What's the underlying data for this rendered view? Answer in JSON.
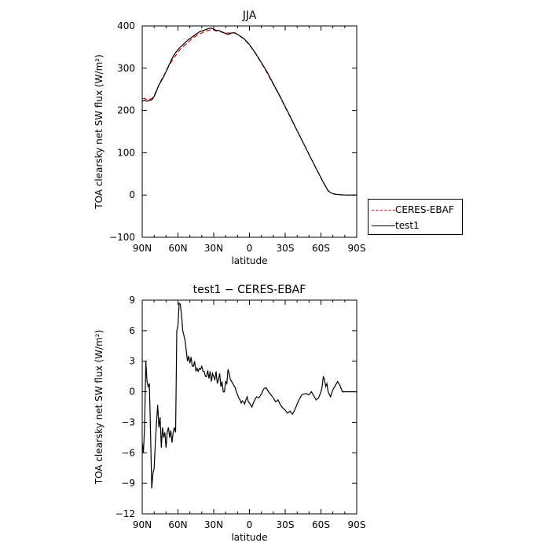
{
  "chart_data": [
    {
      "type": "line",
      "title": "JJA",
      "xlabel": "latitude",
      "ylabel": "TOA clearsky net SW flux (W/m²)",
      "xticks": [
        "90N",
        "60N",
        "30N",
        "0",
        "30S",
        "60S",
        "90S"
      ],
      "yticks": [
        "400",
        "300",
        "200",
        "100",
        "0",
        "−100"
      ],
      "xlim": [
        90,
        -90
      ],
      "ylim": [
        -100,
        400
      ],
      "legend": "right, outside plot",
      "series": [
        {
          "name": "CERES-EBAF",
          "color": "#cc0000",
          "style": "dashed",
          "x": [
            90,
            88,
            86,
            84,
            82,
            80,
            78,
            76,
            74,
            72,
            70,
            68,
            66,
            64,
            62,
            60,
            58,
            56,
            54,
            52,
            50,
            48,
            46,
            44,
            42,
            40,
            38,
            36,
            34,
            32,
            30,
            28,
            26,
            24,
            22,
            20,
            18,
            16,
            14,
            12,
            10,
            5,
            0,
            -5,
            -10,
            -15,
            -20,
            -25,
            -30,
            -35,
            -40,
            -45,
            -50,
            -55,
            -60,
            -62,
            -64,
            -66,
            -68,
            -70,
            -72,
            -75,
            -80,
            -85,
            -90
          ],
          "values": [
            228,
            228,
            226,
            226,
            228,
            235,
            248,
            260,
            272,
            282,
            292,
            303,
            313,
            322,
            330,
            338,
            345,
            350,
            355,
            360,
            365,
            370,
            374,
            378,
            381,
            383,
            386,
            388,
            390,
            391,
            392,
            390,
            388,
            387,
            385,
            384,
            383,
            383,
            384,
            383,
            380,
            370,
            355,
            335,
            312,
            288,
            262,
            236,
            208,
            180,
            152,
            124,
            96,
            68,
            40,
            30,
            20,
            10,
            6,
            3,
            2,
            1,
            0,
            0,
            0
          ]
        },
        {
          "name": "test1",
          "color": "#000000",
          "style": "solid",
          "x": [
            90,
            88,
            86,
            84,
            82,
            80,
            78,
            76,
            74,
            72,
            70,
            68,
            66,
            64,
            62,
            60,
            58,
            56,
            54,
            52,
            50,
            48,
            46,
            44,
            42,
            40,
            38,
            36,
            34,
            32,
            30,
            28,
            26,
            24,
            22,
            20,
            18,
            16,
            14,
            12,
            10,
            5,
            0,
            -5,
            -10,
            -15,
            -20,
            -25,
            -30,
            -35,
            -40,
            -45,
            -50,
            -55,
            -60,
            -62,
            -64,
            -66,
            -68,
            -70,
            -72,
            -75,
            -80,
            -85,
            -90
          ],
          "values": [
            222,
            224,
            222,
            224,
            225,
            233,
            246,
            260,
            270,
            280,
            292,
            305,
            317,
            328,
            337,
            344,
            350,
            355,
            360,
            366,
            370,
            374,
            378,
            382,
            386,
            388,
            390,
            392,
            394,
            395,
            392,
            388,
            390,
            386,
            384,
            382,
            380,
            382,
            384,
            383,
            380,
            371,
            356,
            336,
            313,
            290,
            263,
            237,
            209,
            181,
            152,
            124,
            96,
            68,
            41,
            30,
            20,
            10,
            6,
            3,
            2,
            1,
            0,
            0,
            0
          ]
        }
      ]
    },
    {
      "type": "line",
      "title": "test1 − CERES-EBAF",
      "xlabel": "latitude",
      "ylabel": "TOA clearsky net SW flux (W/m²)",
      "xticks": [
        "90N",
        "60N",
        "30N",
        "0",
        "30S",
        "60S",
        "90S"
      ],
      "yticks": [
        "9",
        "6",
        "3",
        "0",
        "−3",
        "−6",
        "−9",
        "−12"
      ],
      "xlim": [
        90,
        -90
      ],
      "ylim": [
        -12,
        9
      ],
      "series": [
        {
          "color": "#000000",
          "style": "solid",
          "x": [
            90,
            89,
            88,
            87,
            86,
            85,
            84,
            83,
            82,
            81,
            80,
            79,
            78,
            77,
            76,
            75,
            74,
            73,
            72,
            71,
            70,
            69,
            68,
            67,
            66,
            65,
            64,
            63,
            62,
            61,
            60,
            59,
            58,
            57,
            56,
            55,
            54,
            53,
            52,
            51,
            50,
            49,
            48,
            47,
            46,
            45,
            44,
            43,
            42,
            41,
            40,
            39,
            38,
            37,
            36,
            35,
            34,
            33,
            32,
            31,
            30,
            29,
            28,
            27,
            26,
            25,
            24,
            23,
            22,
            21,
            20,
            19,
            18,
            17,
            16,
            15,
            14,
            13,
            12,
            11,
            10,
            9,
            8,
            7,
            6,
            5,
            4,
            3,
            2,
            1,
            0,
            -2,
            -4,
            -6,
            -8,
            -10,
            -12,
            -14,
            -16,
            -18,
            -20,
            -22,
            -24,
            -26,
            -28,
            -30,
            -32,
            -34,
            -36,
            -38,
            -40,
            -42,
            -44,
            -46,
            -48,
            -50,
            -52,
            -54,
            -56,
            -58,
            -60,
            -61,
            -62,
            -63,
            -64,
            -65,
            -66,
            -68,
            -70,
            -72,
            -74,
            -76,
            -78,
            -80,
            -82,
            -84,
            -86,
            -88,
            -90
          ],
          "values": [
            -5,
            -6,
            -3.5,
            3,
            1,
            0.5,
            0.8,
            -4,
            -9.5,
            -8,
            -7.5,
            -5,
            -3,
            -1.3,
            -3.5,
            -2.5,
            -5.5,
            -3.5,
            -4.5,
            -4,
            -5.5,
            -4,
            -3.5,
            -4.5,
            -3.8,
            -5,
            -4,
            -3.5,
            -4,
            6,
            6.5,
            8.7,
            8.6,
            7.5,
            6,
            5.5,
            5,
            4,
            3,
            3.5,
            2.8,
            3.4,
            2.5,
            2.5,
            3,
            2,
            2.3,
            2,
            2.3,
            2.2,
            2.5,
            2,
            2,
            1.5,
            1.5,
            2.1,
            1.3,
            2,
            1,
            1.8,
            1.5,
            1.2,
            2,
            0.8,
            1.2,
            1.8,
            0.5,
            1,
            0,
            0,
            1,
            0.8,
            2.2,
            1.8,
            1.2,
            1,
            0.8,
            0.6,
            0.4,
            0,
            -0.3,
            -0.6,
            -0.8,
            -1.1,
            -0.9,
            -1,
            -1.2,
            -0.8,
            -0.5,
            -1,
            -1.1,
            -1.5,
            -0.9,
            -0.5,
            -0.6,
            -0.2,
            0.3,
            0.4,
            0,
            -0.3,
            -0.6,
            -1,
            -0.8,
            -1.3,
            -1.6,
            -1.8,
            -2.1,
            -1.9,
            -2.2,
            -1.8,
            -1.2,
            -0.7,
            -0.3,
            -0.2,
            -0.2,
            -0.3,
            0,
            -0.4,
            -0.8,
            -0.6,
            0,
            0.5,
            1.5,
            1.2,
            0.5,
            0.8,
            0,
            -0.5,
            0.2,
            0.6,
            1,
            0.6,
            0,
            0,
            0,
            0,
            0,
            0,
            0
          ]
        }
      ]
    }
  ]
}
